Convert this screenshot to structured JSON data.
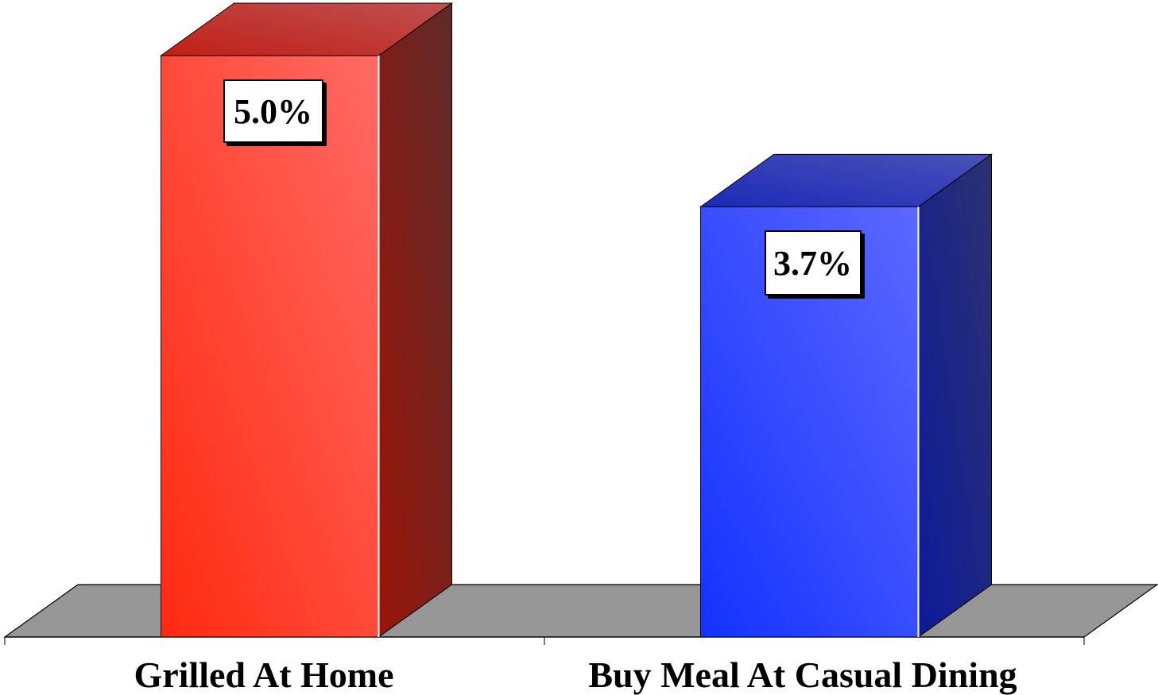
{
  "chart_data": {
    "type": "bar",
    "categories": [
      "Grilled At Home",
      "Buy Meal At Casual Dining"
    ],
    "values": [
      5.0,
      3.7
    ],
    "value_labels": [
      "5.0%",
      "3.7%"
    ],
    "bar_colors": [
      "#ff3a2a",
      "#3a4cff"
    ],
    "floor_color": "#969696",
    "ylim": [
      0,
      5.0
    ],
    "grid": false,
    "legend": "none"
  }
}
